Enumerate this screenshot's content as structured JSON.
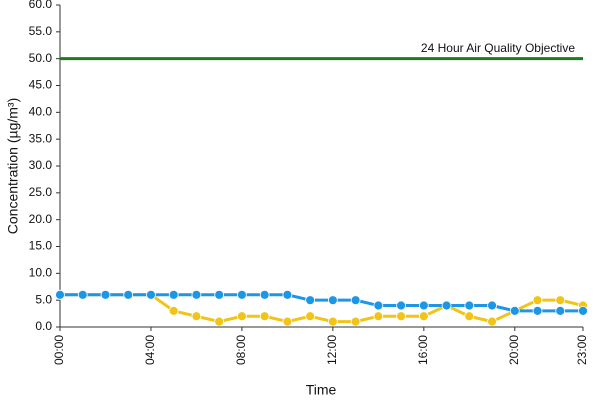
{
  "chart_data": {
    "type": "line",
    "y_label": "Concentration (µg/m³)",
    "x_label": "Time",
    "categories": [
      "00:00",
      null,
      null,
      null,
      "04:00",
      null,
      null,
      null,
      "08:00",
      null,
      null,
      null,
      "12:00",
      null,
      null,
      null,
      "16:00",
      null,
      null,
      null,
      "20:00",
      null,
      null,
      "23:00"
    ],
    "series": [
      {
        "color": "#f0c419",
        "values": [
          6,
          6,
          6,
          6,
          6,
          3,
          2,
          1,
          2,
          2,
          1,
          2,
          1,
          1,
          2,
          2,
          2,
          4,
          2,
          1,
          3,
          5,
          5,
          4
        ]
      },
      {
        "color": "#1e96e6",
        "values": [
          6,
          6,
          6,
          6,
          6,
          6,
          6,
          6,
          6,
          6,
          6,
          5,
          5,
          5,
          4,
          4,
          4,
          4,
          4,
          4,
          3,
          3,
          3,
          3
        ]
      }
    ],
    "objective": {
      "value": 50,
      "label": "24 Hour Air Quality Objective",
      "color": "#1f7a1f"
    },
    "ylim": [
      0,
      60
    ],
    "yticks": [
      {
        "value": 0,
        "label": "0.0"
      },
      {
        "value": 5,
        "label": "5.0"
      },
      {
        "value": 10,
        "label": "10.0"
      },
      {
        "value": 15,
        "label": "15.0"
      },
      {
        "value": 20,
        "label": "20.0"
      },
      {
        "value": 25,
        "label": "25.0"
      },
      {
        "value": 30,
        "label": "30.0"
      },
      {
        "value": 35,
        "label": "35.0"
      },
      {
        "value": 40,
        "label": "40.0"
      },
      {
        "value": 45,
        "label": "45.0"
      },
      {
        "value": 50,
        "label": "50.0"
      },
      {
        "value": 55,
        "label": "55.0"
      },
      {
        "value": 60,
        "label": "60.0"
      }
    ],
    "grid": false
  }
}
